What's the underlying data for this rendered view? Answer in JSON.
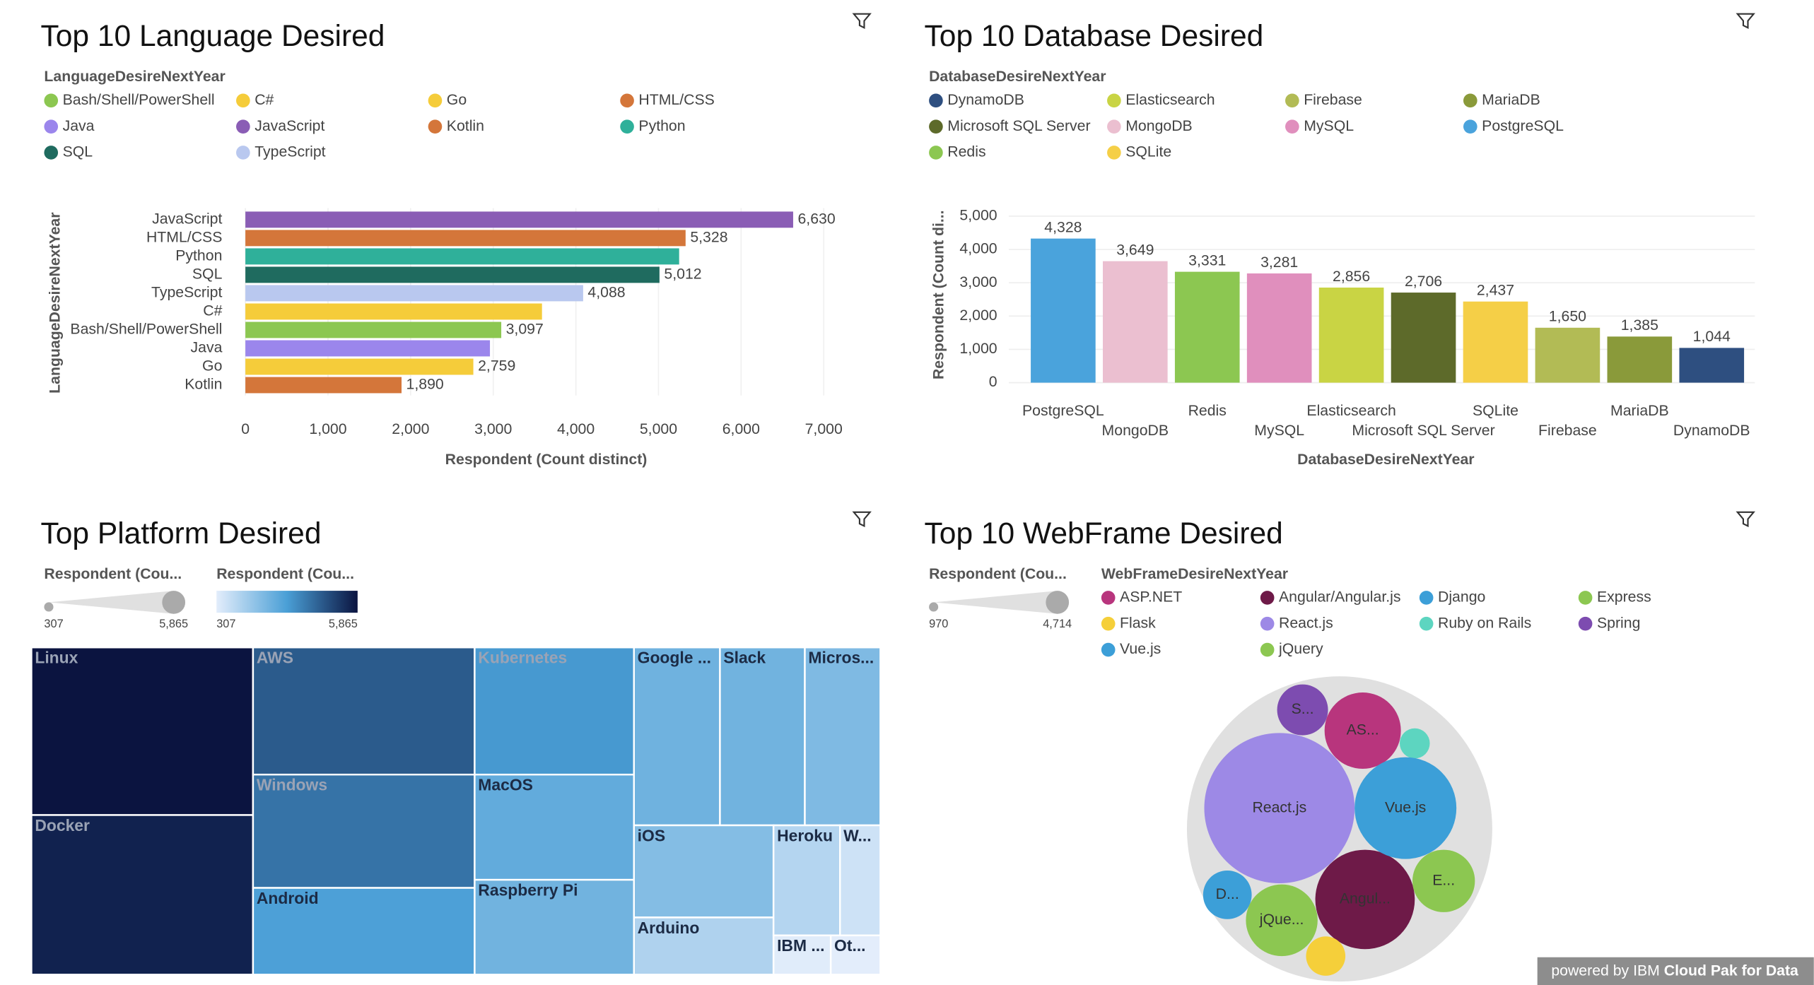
{
  "chart_data": [
    {
      "type": "bar",
      "orientation": "horizontal",
      "title": "Top 10 Language Desired",
      "legend_title": "LanguageDesireNextYear",
      "legend": [
        {
          "name": "Bash/Shell/PowerShell",
          "color": "#8cc751"
        },
        {
          "name": "C#",
          "color": "#f5cc3a"
        },
        {
          "name": "Go",
          "color": "#f5cc3a"
        },
        {
          "name": "HTML/CSS",
          "color": "#d4763a"
        },
        {
          "name": "Java",
          "color": "#9b86ec"
        },
        {
          "name": "JavaScript",
          "color": "#8a5db5"
        },
        {
          "name": "Kotlin",
          "color": "#d4763a"
        },
        {
          "name": "Python",
          "color": "#2fb09a"
        },
        {
          "name": "SQL",
          "color": "#1f6b5f"
        },
        {
          "name": "TypeScript",
          "color": "#b9c8ef"
        }
      ],
      "categories": [
        "JavaScript",
        "HTML/CSS",
        "Python",
        "SQL",
        "TypeScript",
        "C#",
        "Bash/Shell/PowerShell",
        "Java",
        "Go",
        "Kotlin"
      ],
      "values": [
        6630,
        5328,
        5250,
        5012,
        4088,
        3590,
        3097,
        2960,
        2759,
        1890
      ],
      "value_labels": [
        "6,630",
        "5,328",
        null,
        "5,012",
        "4,088",
        null,
        "3,097",
        null,
        "2,759",
        "1,890"
      ],
      "colors": [
        "#8a5db5",
        "#d4763a",
        "#2fb09a",
        "#1f6b5f",
        "#b9c8ef",
        "#f5cc3a",
        "#8cc751",
        "#9b86ec",
        "#f5cc3a",
        "#d4763a"
      ],
      "xlim": [
        0,
        7000
      ],
      "xticks": [
        0,
        {
          "value": 1000,
          "label": "1,000"
        },
        {
          "value": 2000,
          "label": "2,000"
        },
        {
          "value": 3000,
          "label": "3,000"
        },
        {
          "value": 4000,
          "label": "4,000"
        },
        {
          "value": 5000,
          "label": "5,000"
        },
        {
          "value": 6000,
          "label": "6,000"
        },
        {
          "value": 7000,
          "label": "7,000"
        }
      ],
      "xlabel": "Respondent (Count distinct)",
      "ylabel": "LanguageDesireNextYear",
      "grid": true
    },
    {
      "type": "bar",
      "orientation": "vertical",
      "title": "Top 10 Database Desired",
      "legend_title": "DatabaseDesireNextYear",
      "legend": [
        {
          "name": "DynamoDB",
          "color": "#2e4f80"
        },
        {
          "name": "Elasticsearch",
          "color": "#c9d444"
        },
        {
          "name": "Firebase",
          "color": "#b2bb55"
        },
        {
          "name": "MariaDB",
          "color": "#8a9a3a"
        },
        {
          "name": "Microsoft SQL Server",
          "color": "#5d6a2a"
        },
        {
          "name": "MongoDB",
          "color": "#ebbfd0"
        },
        {
          "name": "MySQL",
          "color": "#e08fbd"
        },
        {
          "name": "PostgreSQL",
          "color": "#4aa3dc"
        },
        {
          "name": "Redis",
          "color": "#8cc751"
        },
        {
          "name": "SQLite",
          "color": "#f5cf47"
        }
      ],
      "categories": [
        "PostgreSQL",
        "MongoDB",
        "Redis",
        "MySQL",
        "Elasticsearch",
        "Microsoft SQL Server",
        "SQLite",
        "Firebase",
        "MariaDB",
        "DynamoDB"
      ],
      "values": [
        4328,
        3649,
        3331,
        3281,
        2856,
        2706,
        2437,
        1650,
        1385,
        1044
      ],
      "value_labels": [
        "4,328",
        "3,649",
        "3,331",
        "3,281",
        "2,856",
        "2,706",
        "2,437",
        "1,650",
        "1,385",
        "1,044"
      ],
      "colors": [
        "#4aa3dc",
        "#ebbfd0",
        "#8cc751",
        "#e08fbd",
        "#c9d444",
        "#5d6a2a",
        "#f5cf47",
        "#b2bb55",
        "#8a9a3a",
        "#2e4f80"
      ],
      "ylim": [
        0,
        5000
      ],
      "yticks": [
        0,
        {
          "value": 1000,
          "label": "1,000"
        },
        {
          "value": 2000,
          "label": "2,000"
        },
        {
          "value": 3000,
          "label": "3,000"
        },
        {
          "value": 4000,
          "label": "4,000"
        },
        {
          "value": 5000,
          "label": "5,000"
        }
      ],
      "xlabel": "DatabaseDesireNextYear",
      "ylabel": "Respondent (Count di...",
      "grid": true
    },
    {
      "type": "treemap",
      "title": "Top Platform Desired",
      "categories": [
        "Linux",
        "Docker",
        "AWS",
        "Windows",
        "Android",
        "Kubernetes",
        "MacOS",
        "Raspberry Pi",
        "Google ...",
        "Slack",
        "Micros...",
        "iOS",
        "Arduino",
        "Heroku",
        "W...",
        "IBM ...",
        "Ot..."
      ],
      "values": [
        5865,
        5582,
        4449,
        3964,
        3034,
        3198,
        2646,
        2384,
        2416,
        2384,
        2122,
        2030,
        1259,
        1156,
        702,
        354,
        307
      ],
      "size_legend": {
        "title": "Respondent (Cou...",
        "ticks": [
          307,
          {
            "value": 5865,
            "label": "5,865"
          }
        ]
      },
      "color_legend": {
        "title": "Respondent (Cou...",
        "ticks": [
          307,
          {
            "value": 5865,
            "label": "5,865"
          }
        ],
        "colors": [
          "#e3edfb",
          "#4a9fd6",
          "#0b1440"
        ]
      }
    },
    {
      "type": "bubble",
      "title": "Top 10 WebFrame Desired",
      "legend_title": "WebFrameDesireNextYear",
      "categories": [
        "ASP.NET",
        "Angular/Angular.js",
        "Django",
        "Express",
        "Flask",
        "React.js",
        "Ruby on Rails",
        "Spring",
        "Vue.js",
        "jQuery"
      ],
      "values": [
        2410,
        3130,
        1546,
        1978,
        1258,
        4714,
        970,
        1618,
        3202,
        2266
      ],
      "colors": [
        "#b8357d",
        "#6e1a48",
        "#3c9fd8",
        "#8cc751",
        "#f5cf3a",
        "#9d89e6",
        "#5dd5c0",
        "#7d4cb0",
        "#3c9fd8",
        "#8cc751"
      ],
      "bubble_labels": [
        "AS...",
        "Angul...",
        "D...",
        "E...",
        null,
        "React.js",
        null,
        "S...",
        "Vue.js",
        "jQue..."
      ],
      "size_legend": {
        "title": "Respondent (Cou...",
        "ticks": [
          970,
          {
            "value": 4714,
            "label": "4,714"
          }
        ]
      }
    }
  ],
  "footer": {
    "prefix": "powered by IBM",
    "brand": "Cloud Pak for Data"
  }
}
